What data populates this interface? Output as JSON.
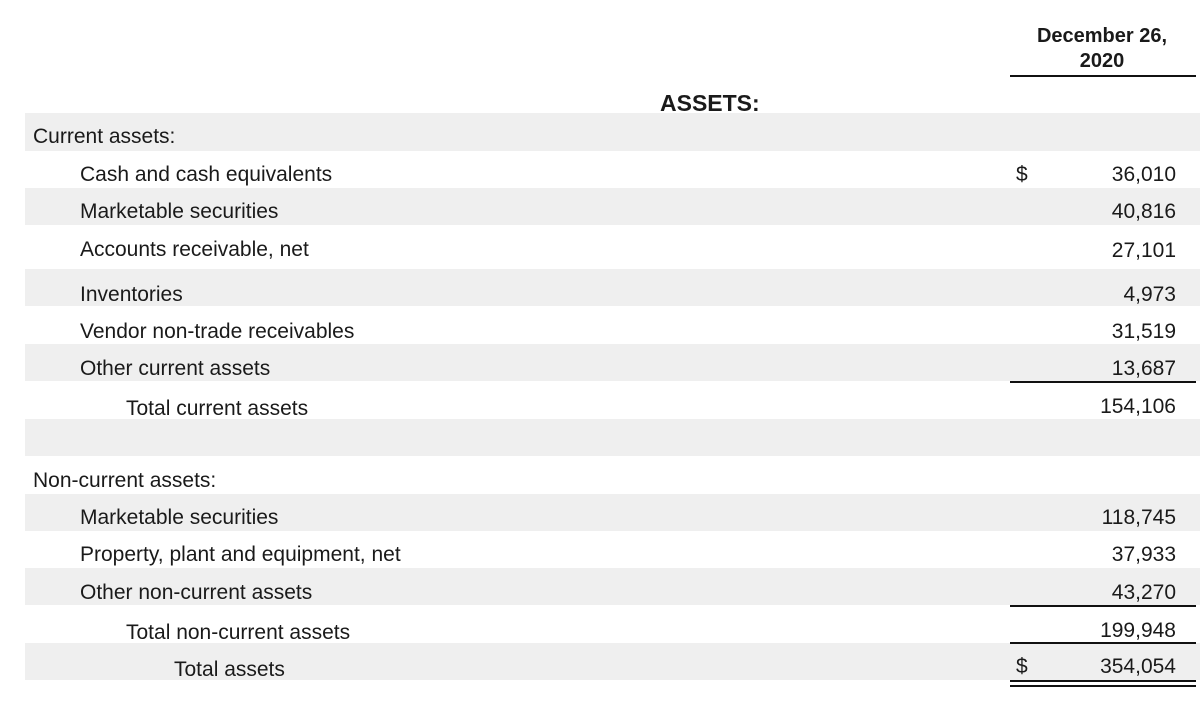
{
  "header": {
    "date_line1": "December 26,",
    "date_line2": "2020"
  },
  "title": "ASSETS:",
  "current": {
    "heading": "Current assets:",
    "currency": "$",
    "items": [
      {
        "label": "Cash and cash equivalents",
        "value": "36,010"
      },
      {
        "label": "Marketable securities",
        "value": "40,816"
      },
      {
        "label": "Accounts receivable, net",
        "value": "27,101"
      },
      {
        "label": "Inventories",
        "value": "4,973"
      },
      {
        "label": "Vendor non-trade receivables",
        "value": "31,519"
      },
      {
        "label": "Other current assets",
        "value": "13,687"
      }
    ],
    "total": {
      "label": "Total current assets",
      "value": "154,106"
    }
  },
  "noncurrent": {
    "heading": "Non-current assets:",
    "items": [
      {
        "label": "Marketable securities",
        "value": "118,745"
      },
      {
        "label": "Property, plant and equipment, net",
        "value": "37,933"
      },
      {
        "label": "Other non-current assets",
        "value": "43,270"
      }
    ],
    "total": {
      "label": "Total non-current assets",
      "value": "199,948"
    }
  },
  "grand_total": {
    "label": "Total assets",
    "currency": "$",
    "value": "354,054"
  }
}
